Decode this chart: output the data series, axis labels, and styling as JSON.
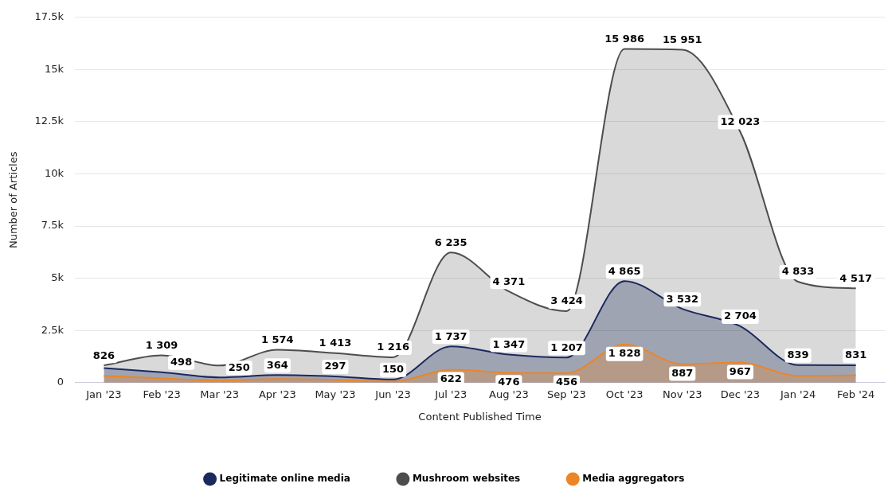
{
  "chart_data": {
    "type": "area",
    "xlabel": "Content Published Time",
    "ylabel": "Number of Articles",
    "categories": [
      "Jan '23",
      "Feb '23",
      "Mar '23",
      "Apr '23",
      "May '23",
      "Jun '23",
      "Jul '23",
      "Aug '23",
      "Sep '23",
      "Oct '23",
      "Nov '23",
      "Dec '23",
      "Jan '24",
      "Feb '24"
    ],
    "series": [
      {
        "name": "Legitimate online media",
        "color": "#1b2a5e",
        "values": [
          700,
          498,
          250,
          364,
          297,
          150,
          1737,
          1347,
          1207,
          4865,
          3532,
          2704,
          839,
          831
        ],
        "value_labels": [
          null,
          "498",
          "250",
          "364",
          "297",
          "150",
          "1 737",
          "1 347",
          "1 207",
          "4 865",
          "3 532",
          "2 704",
          "839",
          "831"
        ]
      },
      {
        "name": "Mushroom websites",
        "color": "#4d4d4d",
        "values": [
          826,
          1309,
          820,
          1574,
          1413,
          1216,
          6235,
          4371,
          3424,
          15986,
          15951,
          12023,
          4833,
          4517
        ],
        "value_labels": [
          "826",
          "1 309",
          null,
          "1 574",
          "1 413",
          "1 216",
          "6 235",
          "4 371",
          "3 424",
          "15 986",
          "15 951",
          "12 023",
          "4 833",
          "4 517"
        ]
      },
      {
        "name": "Media aggregators",
        "color": "#ec8526",
        "values": [
          330,
          200,
          100,
          170,
          130,
          50,
          622,
          476,
          456,
          1828,
          887,
          967,
          320,
          350
        ],
        "value_labels": [
          null,
          null,
          null,
          null,
          null,
          null,
          "622",
          "476",
          "456",
          "1 828",
          "887",
          "967",
          null,
          null
        ]
      }
    ],
    "ylim": [
      0,
      17500
    ],
    "yticks": [
      {
        "value": 0,
        "label": "0"
      },
      {
        "value": 2500,
        "label": "2.5k"
      },
      {
        "value": 5000,
        "label": "5k"
      },
      {
        "value": 7500,
        "label": "7.5k"
      },
      {
        "value": 10000,
        "label": "10k"
      },
      {
        "value": 12500,
        "label": "12.5k"
      },
      {
        "value": 15000,
        "label": "15k"
      },
      {
        "value": 17500,
        "label": "17.5k"
      }
    ],
    "grid": "y",
    "legend": "bottom",
    "marker": "none",
    "line_style": "solid"
  }
}
